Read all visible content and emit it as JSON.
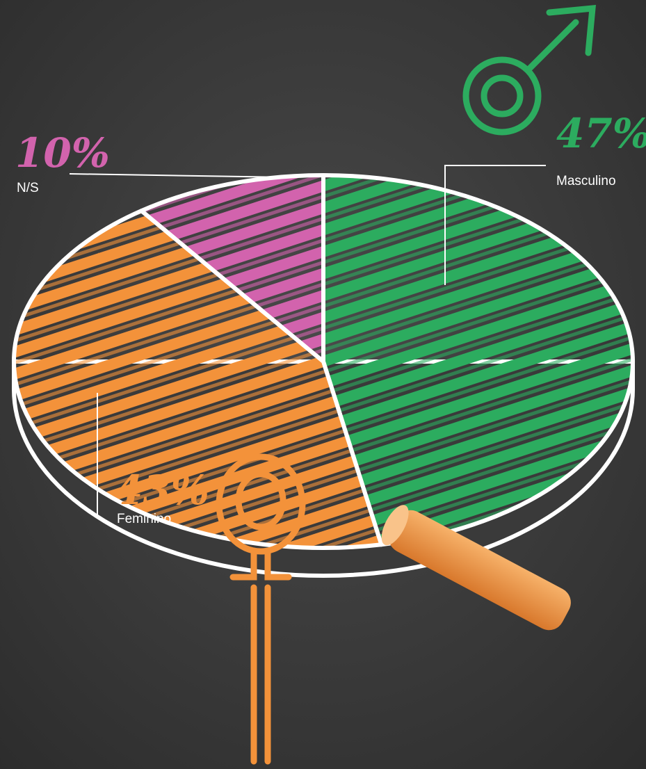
{
  "chart_data": {
    "type": "pie",
    "categories": [
      "Masculino",
      "Feminino",
      "N/S"
    ],
    "values": [
      47,
      43,
      10
    ],
    "value_labels": [
      "47%",
      "43%",
      "10%"
    ],
    "colors": [
      "#2cac5f",
      "#f3923a",
      "#d263ad"
    ]
  }
}
